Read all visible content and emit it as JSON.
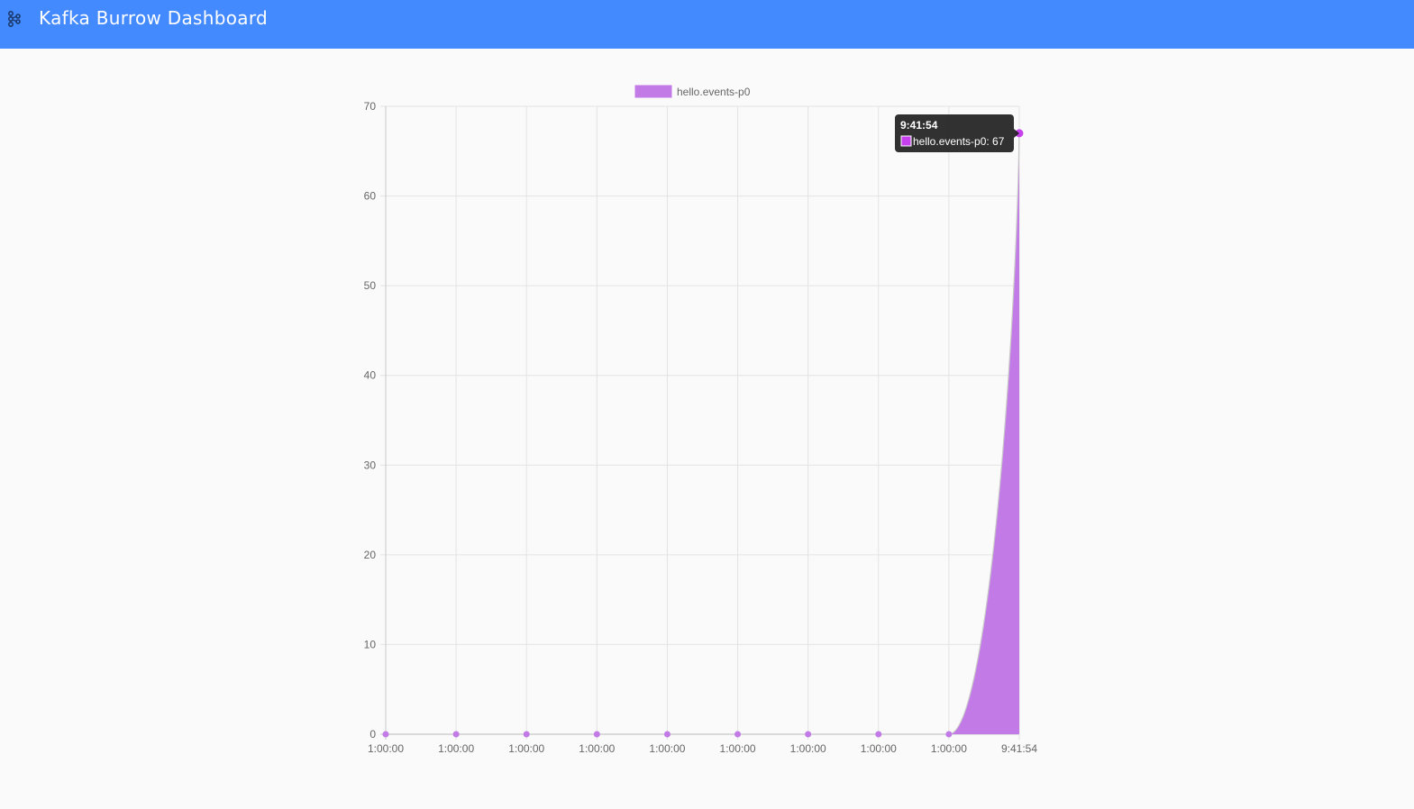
{
  "header": {
    "title": "Kafka Burrow Dashboard",
    "icon": "kafka-logo-icon",
    "background": "#448aff"
  },
  "chart_data": {
    "type": "area",
    "x": [
      "1:00:00",
      "1:00:00",
      "1:00:00",
      "1:00:00",
      "1:00:00",
      "1:00:00",
      "1:00:00",
      "1:00:00",
      "1:00:00",
      "9:41:54"
    ],
    "series": [
      {
        "name": "hello.events-p0",
        "values": [
          0,
          0,
          0,
          0,
          0,
          0,
          0,
          0,
          0,
          67
        ],
        "color": "#c27be6"
      }
    ],
    "ylim": [
      0,
      70
    ],
    "yticks": [
      0,
      10,
      20,
      30,
      40,
      50,
      60,
      70
    ],
    "grid": true,
    "legend": "top",
    "tooltip": {
      "title": "9:41:54",
      "label": "hello.events-p0: 67"
    }
  }
}
